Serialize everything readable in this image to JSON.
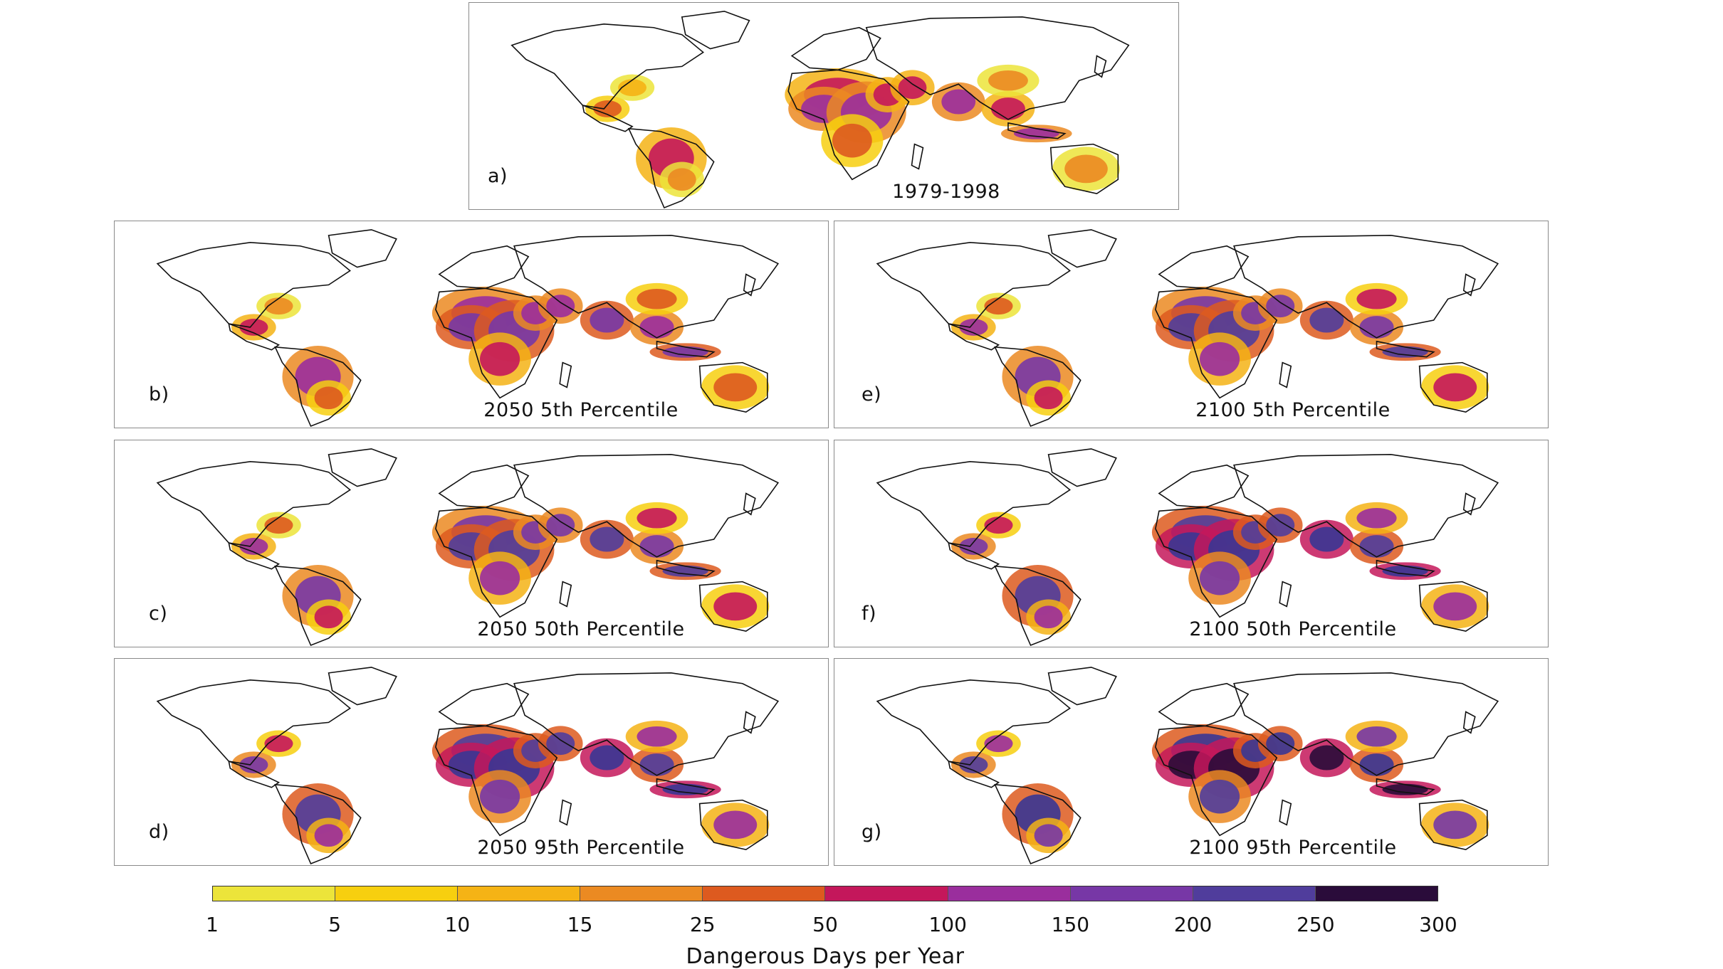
{
  "panels": [
    {
      "id": "a",
      "label": "a)",
      "title": "1979-1998",
      "intensity": 0
    },
    {
      "id": "b",
      "label": "b)",
      "title": "2050 5th Percentile",
      "intensity": 1
    },
    {
      "id": "e",
      "label": "e)",
      "title": "2100 5th Percentile",
      "intensity": 2
    },
    {
      "id": "c",
      "label": "c)",
      "title": "2050 50th Percentile",
      "intensity": 2
    },
    {
      "id": "f",
      "label": "f)",
      "title": "2100 50th Percentile",
      "intensity": 3
    },
    {
      "id": "d",
      "label": "d)",
      "title": "2050 95th Percentile",
      "intensity": 2.5
    },
    {
      "id": "g",
      "label": "g)",
      "title": "2100 95th Percentile",
      "intensity": 4
    }
  ],
  "legend": {
    "label": "Dangerous Days per Year",
    "ticks": [
      "1",
      "5",
      "10",
      "15",
      "25",
      "50",
      "100",
      "150",
      "200",
      "250",
      "300"
    ],
    "colors": [
      "#ece43a",
      "#f7cf0f",
      "#f5b315",
      "#eb8a22",
      "#dd5a1f",
      "#c4175b",
      "#9a2e9d",
      "#7737a6",
      "#503d9c",
      "#3a3693",
      "#2a0c3a"
    ]
  }
}
